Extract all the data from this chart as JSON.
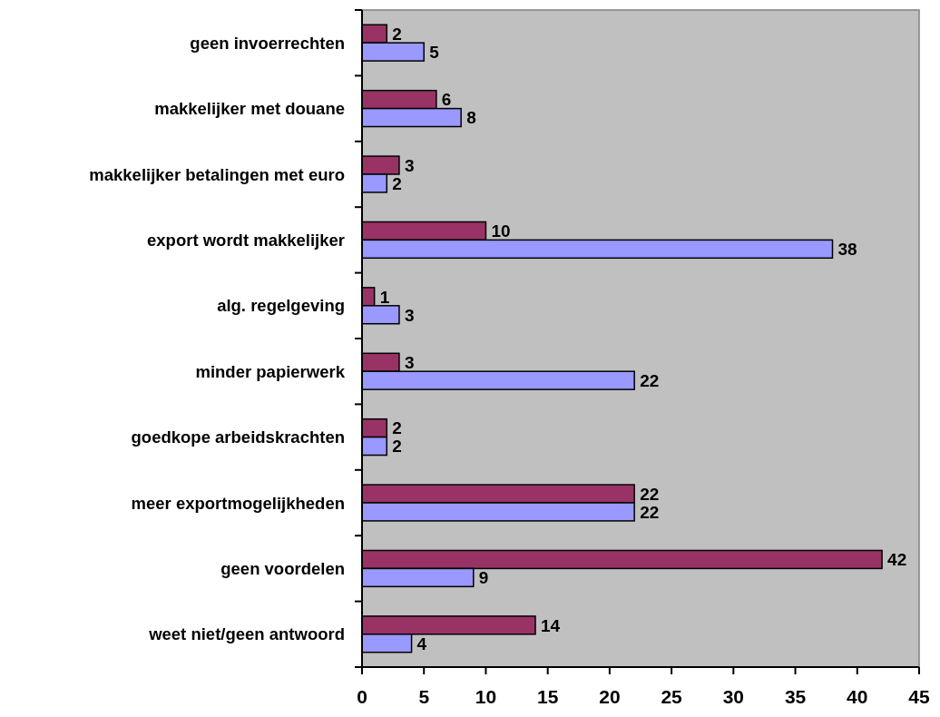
{
  "chart_data": {
    "type": "bar",
    "orientation": "horizontal",
    "categories": [
      "geen invoerrechten",
      "makkelijker met douane",
      "makkelijker betalingen met euro",
      "export wordt makkelijker",
      "alg. regelgeving",
      "minder papierwerk",
      "goedkope arbeidskrachten",
      "meer exportmogelijkheden",
      "geen voordelen",
      "weet niet/geen antwoord"
    ],
    "series": [
      {
        "color": "#993366",
        "values": [
          2,
          6,
          3,
          10,
          1,
          3,
          2,
          22,
          42,
          14
        ]
      },
      {
        "color": "#9999ff",
        "values": [
          5,
          8,
          2,
          38,
          3,
          22,
          2,
          22,
          9,
          4
        ]
      }
    ],
    "xlim": [
      0,
      45
    ],
    "xticks": [
      0,
      5,
      10,
      15,
      20,
      25,
      30,
      35,
      40,
      45
    ],
    "data_labels": true
  }
}
